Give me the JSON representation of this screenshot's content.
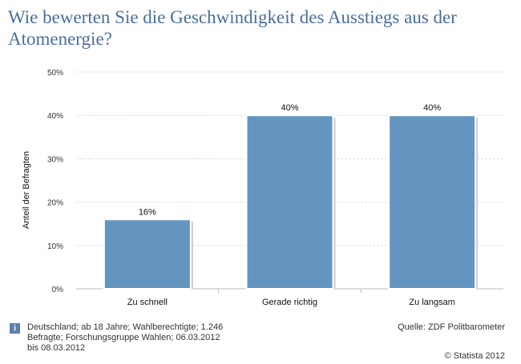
{
  "title": "Wie bewerten Sie die Geschwindigkeit des Ausstiegs aus der Atomenergie?",
  "footer": {
    "info_icon": "info-icon",
    "note": "Deutschland; ab 18 Jahre; Wahlberechtigte; 1.246 Befragte; Forschungsgruppe Wahlen; 06.03.2012 bis 08.03.2012",
    "source": "Quelle: ZDF Politbarometer",
    "copyright": "© Statista 2012"
  },
  "colors": {
    "bar": "#6495c0",
    "bar_border": "#ffffff",
    "grid": "#dddddd",
    "title": "#4a6e9a"
  },
  "chart_data": {
    "type": "bar",
    "categories": [
      "Zu schnell",
      "Gerade richtig",
      "Zu langsam"
    ],
    "values": [
      16,
      40,
      40
    ],
    "data_labels": [
      "16%",
      "40%",
      "40%"
    ],
    "ylabel": "Anteil der Befragten",
    "xlabel": "",
    "ylim": [
      0,
      50
    ],
    "yticks": [
      0,
      10,
      20,
      30,
      40,
      50
    ],
    "ytick_labels": [
      "0%",
      "10%",
      "20%",
      "30%",
      "40%",
      "50%"
    ],
    "grid": true
  }
}
